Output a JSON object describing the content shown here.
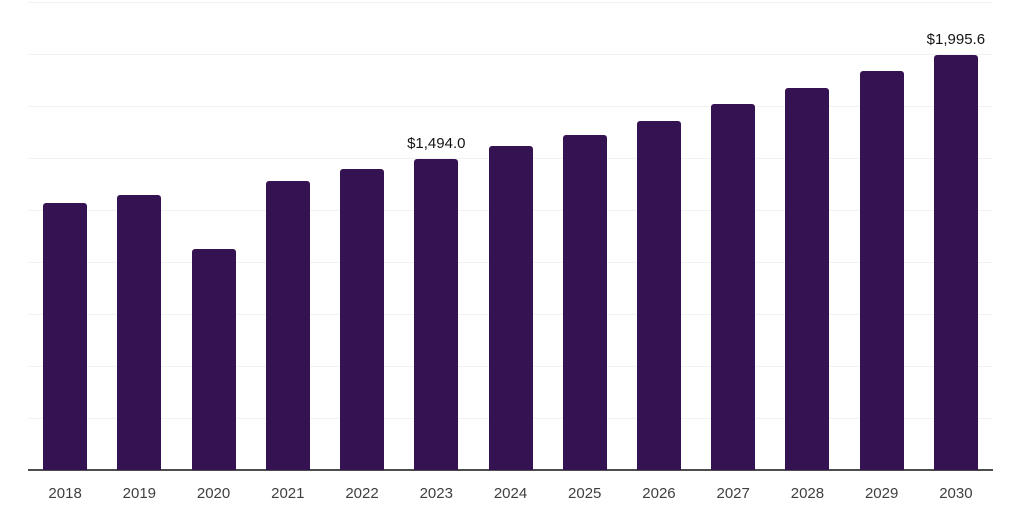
{
  "chart_data": {
    "type": "bar",
    "title": "",
    "xlabel": "",
    "ylabel": "",
    "categories": [
      "2018",
      "2019",
      "2020",
      "2021",
      "2022",
      "2023",
      "2024",
      "2025",
      "2026",
      "2027",
      "2028",
      "2029",
      "2030"
    ],
    "values": [
      1284,
      1322,
      1062,
      1389,
      1447,
      1494.0,
      1558,
      1611,
      1678,
      1760,
      1837,
      1918,
      1995.6
    ],
    "value_labels": [
      {
        "index": 5,
        "category": "2023",
        "text": "$1,494.0"
      },
      {
        "index": 12,
        "category": "2030",
        "text": "$1,995.6"
      }
    ],
    "ylim": [
      0,
      2250
    ],
    "grid_step": 250,
    "grid": "horizontal-only",
    "y_tick_labels_visible": false,
    "legend_position": "none",
    "bar_color": "#351251"
  },
  "colors": {
    "background": "#FFFFFF",
    "bar": "#351251",
    "gridline": "#F2F2F2",
    "axis_line": "#4D4D4D",
    "x_tick_label": "#3F3F3F",
    "data_label": "#141414"
  }
}
